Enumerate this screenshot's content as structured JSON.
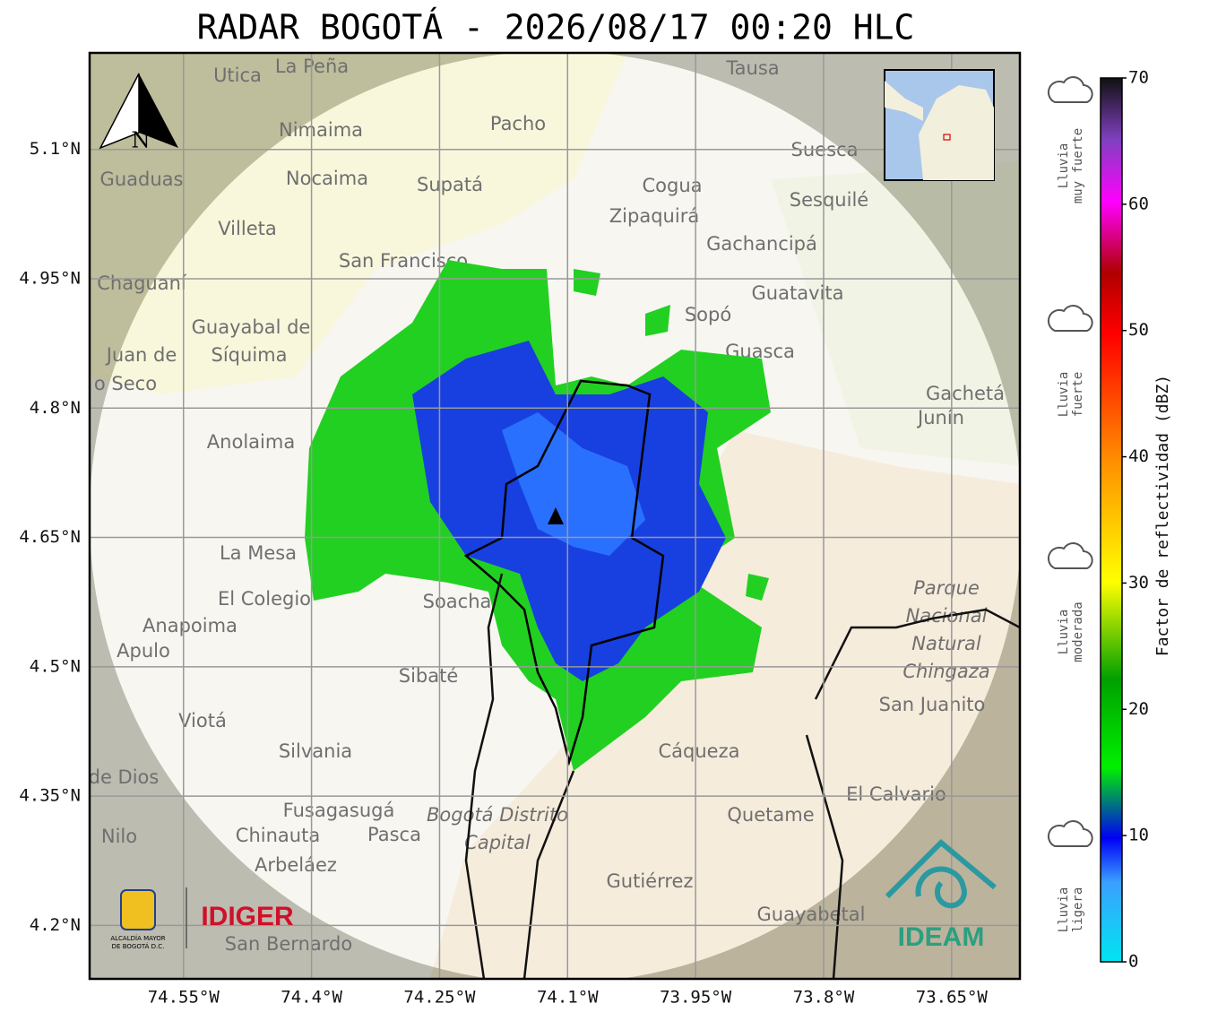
{
  "title": "RADAR BOGOTÁ - 2026/08/17 00:20 HLC",
  "map": {
    "xlim": [
      -74.66,
      -73.57
    ],
    "ylim": [
      4.138,
      5.212
    ],
    "lat_ticks": [
      {
        "value": 5.1,
        "label": "5.1°N"
      },
      {
        "value": 4.95,
        "label": "4.95°N"
      },
      {
        "value": 4.8,
        "label": "4.8°N"
      },
      {
        "value": 4.65,
        "label": "4.65°N"
      },
      {
        "value": 4.5,
        "label": "4.5°N"
      },
      {
        "value": 4.35,
        "label": "4.35°N"
      },
      {
        "value": 4.2,
        "label": "4.2°N"
      }
    ],
    "lon_ticks": [
      {
        "value": -74.55,
        "label": "74.55°W"
      },
      {
        "value": -74.4,
        "label": "74.4°W"
      },
      {
        "value": -74.25,
        "label": "74.25°W"
      },
      {
        "value": -74.1,
        "label": "74.1°W"
      },
      {
        "value": -73.95,
        "label": "73.95°W"
      },
      {
        "value": -73.8,
        "label": "73.8°W"
      },
      {
        "value": -73.65,
        "label": "73.65°W"
      }
    ],
    "compass": "N",
    "places": [
      "Utica",
      "La Peña",
      "Tausa",
      "Nimaima",
      "Pacho",
      "Guaduas",
      "Nocaima",
      "Supatá",
      "Cogua",
      "Suesca",
      "Zipaquirá",
      "Sesquilé",
      "Villeta",
      "Gachancipá",
      "San Francisco",
      "Chaguaní",
      "Guatavita",
      "Sopó",
      "Guayabal de",
      "Síquima",
      "Guasca",
      "Juan de",
      "o Seco",
      "Gachetá",
      "Junín",
      "Anolaima",
      "La Mesa",
      "El Colegio",
      "Soacha",
      "Parque",
      "Nacional",
      "Natural",
      "Chingaza",
      "Anapoima",
      "Apulo",
      "San Juanito",
      "Sibaté",
      "Viotá",
      "Silvania",
      "Cáqueza",
      "de Dios",
      "El Calvario",
      "Fusagasugá",
      "Bogotá Distrito",
      "Capital",
      "Quetame",
      "Nilo",
      "Chinauta",
      "Pasca",
      "Arbeláez",
      "Gutiérrez",
      "Guayabetal",
      "San Bernardo"
    ],
    "logos": {
      "alcaldia": [
        "ALCALDÍA MAYOR",
        "DE BOGOTÁ D.C."
      ],
      "idiger": "IDIGER",
      "ideam": "IDEAM"
    }
  },
  "colorbar": {
    "label": "Factor de reflectividad (dBZ)",
    "lim": [
      0,
      70
    ],
    "ticks": [
      0,
      10,
      20,
      30,
      40,
      50,
      60,
      70
    ],
    "levels": [
      [
        "Lluvia",
        "muy fuerte"
      ],
      [
        "Lluvia",
        "fuerte"
      ],
      [
        "Lluvia",
        "moderada"
      ],
      [
        "Lluvia",
        "ligera"
      ]
    ]
  }
}
